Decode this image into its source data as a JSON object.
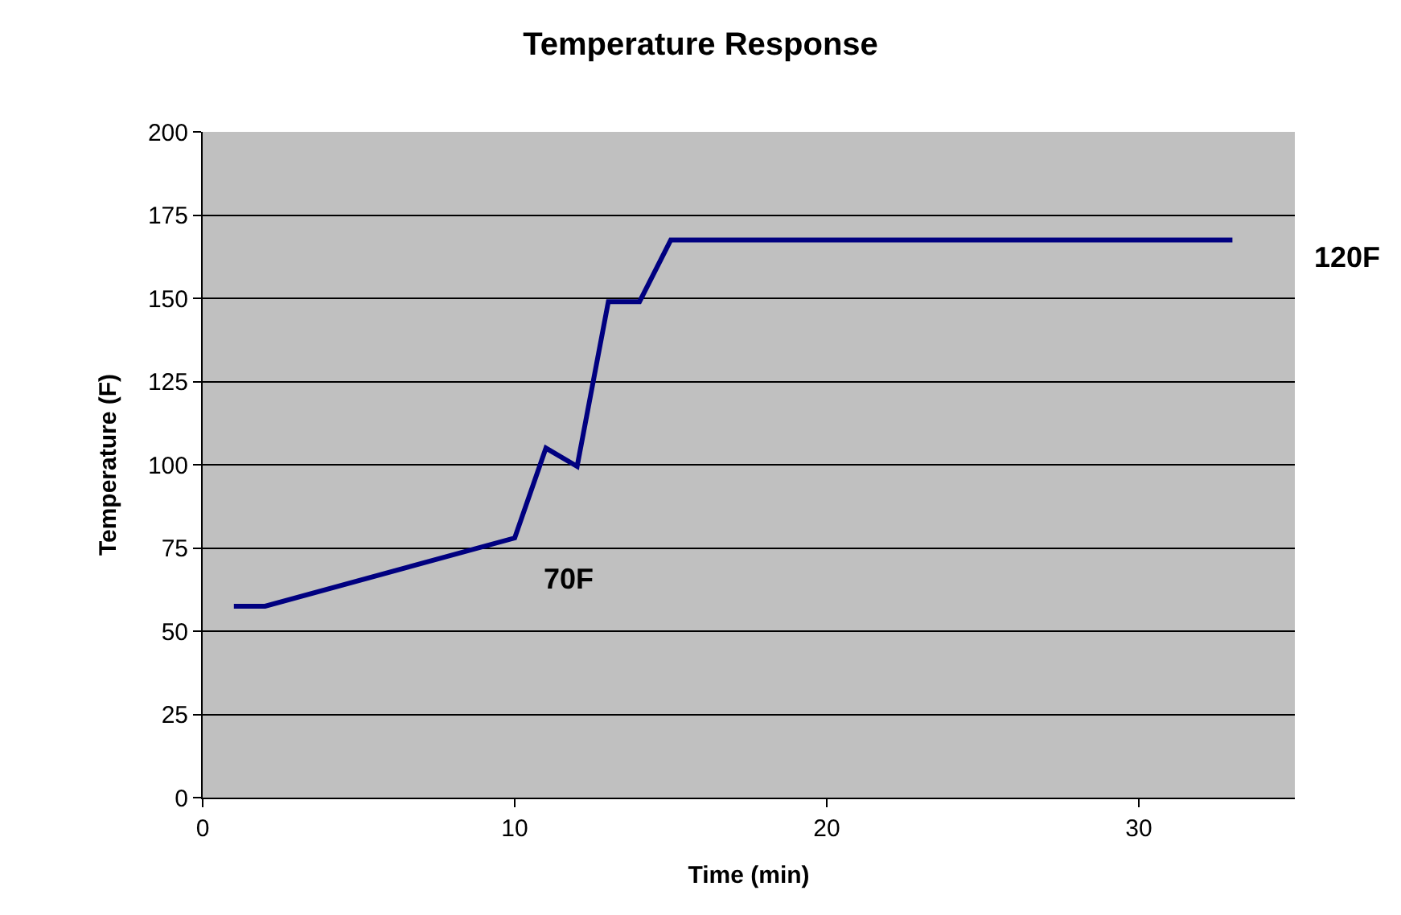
{
  "chart_data": {
    "type": "line",
    "title": "Temperature Response",
    "xlabel": "Time (min)",
    "ylabel": "Temperature (F)",
    "x": [
      1,
      2,
      10,
      11,
      12,
      13,
      14,
      15,
      33
    ],
    "series": [
      {
        "color": "#000080",
        "values": [
          57.5,
          57.5,
          78,
          105,
          99.5,
          149,
          149,
          167.5,
          167.5
        ]
      }
    ],
    "xlim": [
      0,
      35
    ],
    "xticks": [
      0,
      10,
      20,
      30
    ],
    "ylim": [
      0,
      200
    ],
    "yticks": [
      0,
      25,
      50,
      75,
      100,
      125,
      150,
      175,
      200
    ],
    "grid": "y",
    "marker": "none",
    "line_style": "solid",
    "annotations": [
      "70F",
      "120F"
    ]
  }
}
